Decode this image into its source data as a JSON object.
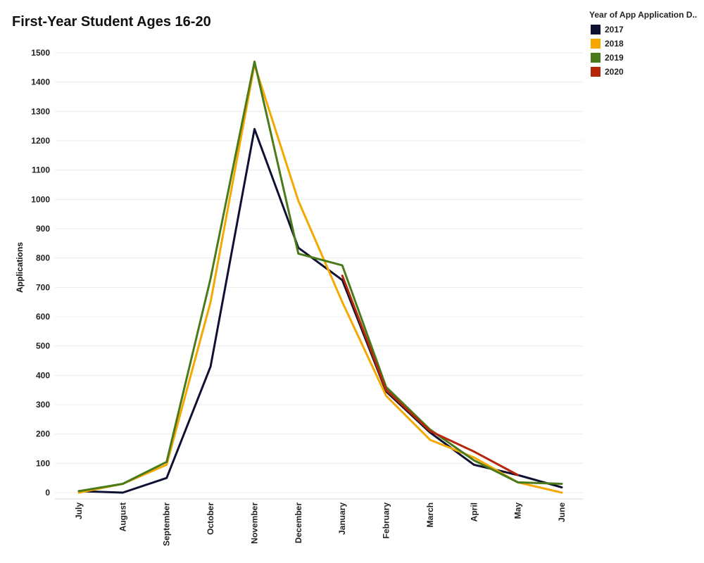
{
  "chart_data": {
    "type": "line",
    "title": "First-Year Student Ages 16-20",
    "xlabel": "",
    "ylabel": "Applications",
    "categories": [
      "July",
      "August",
      "September",
      "October",
      "November",
      "December",
      "January",
      "February",
      "March",
      "April",
      "May",
      "June"
    ],
    "yticks": [
      0,
      100,
      200,
      300,
      400,
      500,
      600,
      700,
      800,
      900,
      1000,
      1100,
      1200,
      1300,
      1400,
      1500
    ],
    "ylim": [
      0,
      1500
    ],
    "grid": "horizontal",
    "legend_position": "top-right",
    "legend_title": "Year of App Application D..",
    "series": [
      {
        "name": "2017",
        "color": "#0f1133",
        "values": [
          5,
          0,
          50,
          430,
          1240,
          835,
          725,
          345,
          205,
          95,
          60,
          18
        ]
      },
      {
        "name": "2018",
        "color": "#f5a800",
        "values": [
          0,
          30,
          95,
          650,
          1460,
          995,
          650,
          330,
          180,
          120,
          35,
          0
        ]
      },
      {
        "name": "2019",
        "color": "#4a7a1a",
        "values": [
          5,
          30,
          105,
          730,
          1470,
          815,
          775,
          360,
          215,
          110,
          35,
          30
        ]
      },
      {
        "name": "2020",
        "color": "#b5260b",
        "values": [
          null,
          null,
          null,
          null,
          null,
          null,
          740,
          350,
          210,
          140,
          60,
          null
        ]
      }
    ]
  }
}
